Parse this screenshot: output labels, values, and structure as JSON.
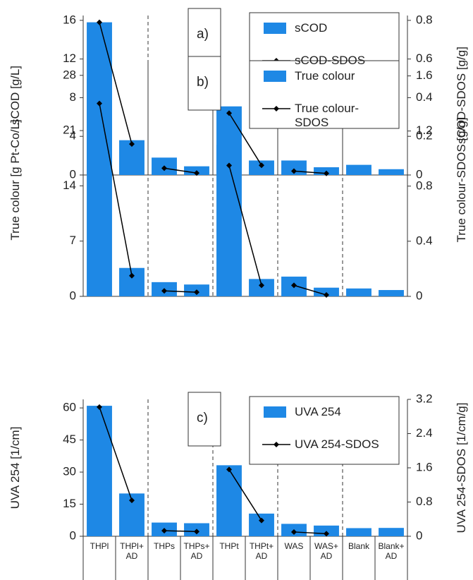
{
  "chart_data": [
    {
      "type": "bar",
      "annotation": "a)",
      "legend": "upper right",
      "ylabel": "sCOD [g/L]",
      "y2label": "sCOD-SDOS [g/g]",
      "ylim": [
        0,
        16.5
      ],
      "yticks": [
        0,
        4,
        8,
        12,
        16
      ],
      "y2lim": [
        0,
        0.825
      ],
      "y2ticks": [
        0,
        0.2,
        0.4,
        0.6,
        0.8
      ],
      "series": [
        {
          "name": "sCOD",
          "color": "#1e88e5",
          "values": [
            15.8,
            3.6,
            1.8,
            0.9,
            7.1,
            1.5,
            1.5,
            0.8,
            1.05,
            0.6
          ]
        },
        {
          "name": "sCOD-SDOS",
          "color": "#000000",
          "type": "line",
          "axis": "y2",
          "values": [
            0.79,
            0.16,
            0.035,
            0.01,
            0.32,
            0.05,
            0.02,
            0.008,
            null,
            null
          ]
        }
      ]
    },
    {
      "type": "bar",
      "annotation": "b)",
      "legend": "upper right",
      "ylabel": "True colour [g Pt-Co/L]",
      "y2label": "True colour-SDOS [g/g]",
      "ylim": [
        0,
        29.5
      ],
      "yticks": [
        0,
        7,
        14,
        21,
        28
      ],
      "y2lim": [
        0,
        1.69
      ],
      "y2ticks": [
        0,
        0.4,
        0.8,
        1.2,
        1.6
      ],
      "series": [
        {
          "name": "True colour",
          "color": "#1e88e5",
          "values": [
            27.6,
            3.6,
            1.8,
            1.5,
            19.2,
            2.2,
            2.5,
            1.1,
            1.0,
            0.8
          ]
        },
        {
          "name": "True colour-SDOS",
          "color": "#000000",
          "type": "line",
          "axis": "y2",
          "values": [
            1.4,
            0.15,
            0.04,
            0.03,
            0.95,
            0.08,
            0.08,
            0.01,
            null,
            null
          ]
        }
      ]
    },
    {
      "type": "bar",
      "annotation": "c)",
      "legend": "upper right",
      "ylabel": "UVA 254 [1/cm]",
      "y2label": "UVA 254-SDOS [1/cm/g]",
      "categories": [
        "THPl",
        "THPl+ AD",
        "THPs",
        "THPs+ AD",
        "THPt",
        "THPt+ AD",
        "WAS",
        "WAS+ AD",
        "Blank",
        "Blank+ AD"
      ],
      "ylim": [
        0,
        64
      ],
      "yticks": [
        0,
        15,
        30,
        45,
        60
      ],
      "y2lim": [
        0,
        3.2
      ],
      "y2ticks": [
        0,
        0.8,
        1.6,
        2.4,
        3.2
      ],
      "series": [
        {
          "name": "UVA 254",
          "color": "#1e88e5",
          "values": [
            61,
            20,
            6.4,
            6.1,
            33.2,
            10.6,
            5.8,
            5.0,
            3.8,
            3.9
          ]
        },
        {
          "name": "UVA 254-SDOS",
          "color": "#000000",
          "type": "line",
          "axis": "y2",
          "values": [
            3.02,
            0.84,
            0.13,
            0.11,
            1.56,
            0.37,
            0.1,
            0.06,
            null,
            null
          ]
        }
      ]
    }
  ]
}
